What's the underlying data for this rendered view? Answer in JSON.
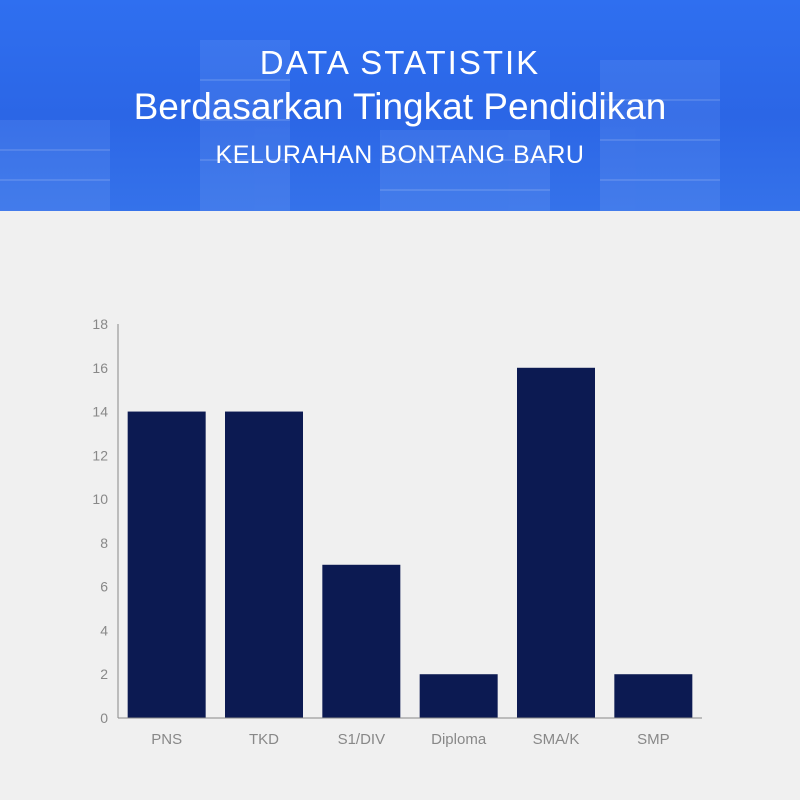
{
  "header": {
    "line1": "DATA STATISTIK",
    "line2": "Berdasarkan Tingkat Pendidikan",
    "line3": "KELURAHAN BONTANG BARU"
  },
  "colors": {
    "header_blue": "#2f6ff0",
    "bar": "#0c1a52",
    "axis": "#888888",
    "tick_label": "#888888",
    "background": "#f0f0f0"
  },
  "chart_data": {
    "type": "bar",
    "categories": [
      "PNS",
      "TKD",
      "S1/DIV",
      "Diploma",
      "SMA/K",
      "SMP"
    ],
    "values": [
      14,
      14,
      7,
      2,
      16,
      2
    ],
    "ylim": [
      0,
      18
    ],
    "yticks": [
      0,
      2,
      4,
      6,
      8,
      10,
      12,
      14,
      16,
      18
    ],
    "title": "",
    "xlabel": "",
    "ylabel": "",
    "grid": false
  }
}
